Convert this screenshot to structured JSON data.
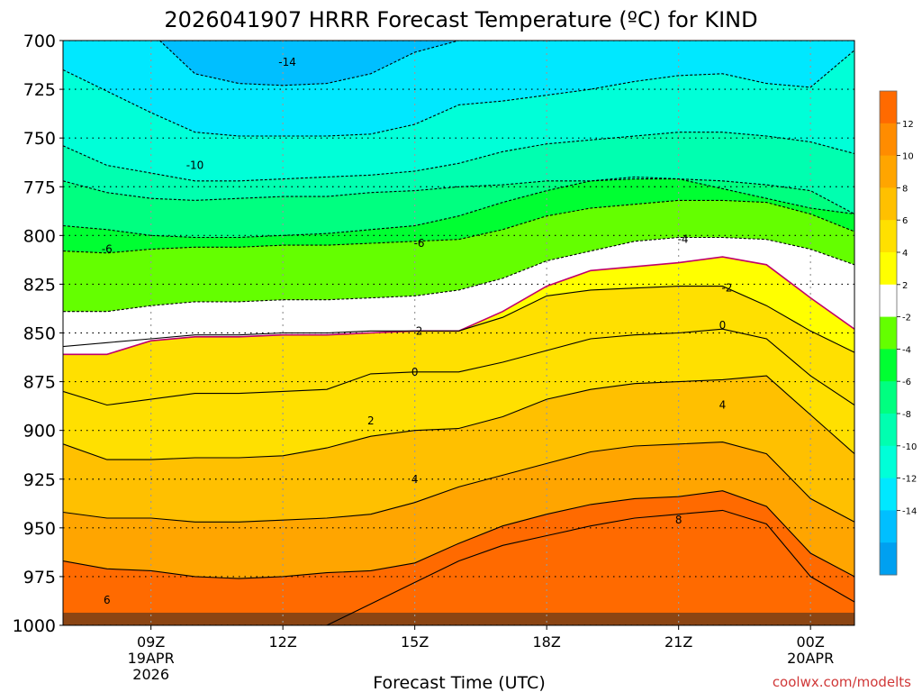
{
  "chart_data": {
    "type": "heatmap",
    "title": "2026041907 HRRR Forecast Temperature (ºC) for KIND",
    "xlabel": "Forecast Time (UTC)",
    "ylabel": "",
    "y_axis_unit": "hPa",
    "y_ticks": [
      "700",
      "725",
      "750",
      "775",
      "800",
      "825",
      "850",
      "875",
      "900",
      "925",
      "950",
      "975",
      "1000"
    ],
    "ylim": [
      1000,
      700
    ],
    "x_ticks": [
      {
        "time": 9,
        "lines": [
          "09Z",
          "19APR",
          "2026"
        ]
      },
      {
        "time": 12,
        "lines": [
          "12Z"
        ]
      },
      {
        "time": 15,
        "lines": [
          "15Z"
        ]
      },
      {
        "time": 18,
        "lines": [
          "18Z"
        ]
      },
      {
        "time": 21,
        "lines": [
          "21Z"
        ]
      },
      {
        "time": 24,
        "lines": [
          "00Z",
          "20APR"
        ]
      }
    ],
    "xlim": [
      7,
      25
    ],
    "grid": true,
    "colorbar": {
      "position": "right",
      "labels": [
        "12",
        "10",
        "8",
        "6",
        "4",
        "2",
        "-2",
        "-4",
        "-6",
        "-8",
        "-10",
        "-12",
        "-14"
      ],
      "colors": [
        "#ff6a00",
        "#ff8c00",
        "#ffa500",
        "#ffc000",
        "#ffe000",
        "#ffff00",
        "#ffffff",
        "#64ff00",
        "#00ff32",
        "#00ff80",
        "#00ffb0",
        "#00ffd8",
        "#00e8ff",
        "#00bfff",
        "#00a0f0"
      ]
    },
    "contour_levels": [
      12,
      10,
      8,
      6,
      4,
      2,
      0,
      -2,
      -4,
      -6,
      -8,
      -10,
      -12,
      -14
    ],
    "contour_labels": [
      {
        "text": "-14",
        "time": 12.1,
        "p": 711
      },
      {
        "text": "-10",
        "time": 10.0,
        "p": 764
      },
      {
        "text": "-6",
        "time": 8.0,
        "p": 807
      },
      {
        "text": "-6",
        "time": 15.1,
        "p": 804
      },
      {
        "text": "-4",
        "time": 21.1,
        "p": 802
      },
      {
        "text": "-2",
        "time": 22.1,
        "p": 827
      },
      {
        "text": "0",
        "time": 22.0,
        "p": 846
      },
      {
        "text": "0",
        "time": 15.0,
        "p": 870
      },
      {
        "text": "2",
        "time": 15.1,
        "p": 849
      },
      {
        "text": "2",
        "time": 14.0,
        "p": 895
      },
      {
        "text": "4",
        "time": 15.0,
        "p": 925
      },
      {
        "text": "4",
        "time": 22.0,
        "p": 887
      },
      {
        "text": "8",
        "time": 21.0,
        "p": 946
      },
      {
        "text": "6",
        "time": 8.0,
        "p": 987
      }
    ],
    "isotherms": [
      {
        "level": -14,
        "points": [
          [
            9.2,
            700
          ],
          [
            10,
            717
          ],
          [
            11,
            722
          ],
          [
            12,
            723
          ],
          [
            13,
            722
          ],
          [
            14,
            717
          ],
          [
            15,
            706
          ],
          [
            16,
            700
          ]
        ]
      },
      {
        "level": -12,
        "points": [
          [
            7,
            715
          ],
          [
            8,
            726
          ],
          [
            9,
            737
          ],
          [
            10,
            747
          ],
          [
            11,
            749
          ],
          [
            12,
            749
          ],
          [
            13,
            749
          ],
          [
            14,
            748
          ],
          [
            15,
            743
          ],
          [
            16,
            733
          ],
          [
            17,
            731
          ],
          [
            18,
            728
          ],
          [
            19,
            725
          ],
          [
            20,
            721
          ],
          [
            21,
            718
          ],
          [
            22,
            717
          ],
          [
            23,
            722
          ],
          [
            24,
            724
          ],
          [
            25,
            705
          ]
        ]
      },
      {
        "level": -10,
        "points": [
          [
            7,
            754
          ],
          [
            8,
            764
          ],
          [
            9,
            768
          ],
          [
            10,
            772
          ],
          [
            11,
            772
          ],
          [
            12,
            771
          ],
          [
            13,
            770
          ],
          [
            14,
            769
          ],
          [
            15,
            767
          ],
          [
            16,
            763
          ],
          [
            17,
            757
          ],
          [
            18,
            753
          ],
          [
            19,
            751
          ],
          [
            20,
            749
          ],
          [
            21,
            747
          ],
          [
            22,
            747
          ],
          [
            23,
            749
          ],
          [
            24,
            752
          ],
          [
            25,
            758
          ]
        ]
      },
      {
        "level": -8,
        "points": [
          [
            7,
            772
          ],
          [
            8,
            778
          ],
          [
            9,
            781
          ],
          [
            10,
            782
          ],
          [
            11,
            781
          ],
          [
            12,
            780
          ],
          [
            13,
            780
          ],
          [
            14,
            778
          ],
          [
            15,
            777
          ],
          [
            16,
            775
          ],
          [
            17,
            774
          ],
          [
            18,
            772
          ],
          [
            19,
            772
          ],
          [
            20,
            771
          ],
          [
            21,
            771
          ],
          [
            22,
            772
          ],
          [
            23,
            774
          ],
          [
            24,
            777
          ],
          [
            25,
            789
          ]
        ]
      },
      {
        "level": -6,
        "points": [
          [
            7,
            795
          ],
          [
            8,
            797
          ],
          [
            9,
            800
          ],
          [
            10,
            801
          ],
          [
            11,
            801
          ],
          [
            12,
            800
          ],
          [
            13,
            799
          ],
          [
            14,
            797
          ],
          [
            15,
            795
          ],
          [
            16,
            790
          ],
          [
            17,
            783
          ],
          [
            18,
            777
          ],
          [
            19,
            772
          ],
          [
            20,
            770
          ],
          [
            21,
            771
          ],
          [
            22,
            776
          ],
          [
            23,
            781
          ],
          [
            24,
            786
          ],
          [
            25,
            789
          ]
        ]
      },
      {
        "level": -4,
        "points": [
          [
            7,
            808
          ],
          [
            8,
            809
          ],
          [
            9,
            807
          ],
          [
            10,
            806
          ],
          [
            11,
            806
          ],
          [
            12,
            805
          ],
          [
            13,
            805
          ],
          [
            14,
            804
          ],
          [
            15,
            803
          ],
          [
            16,
            802
          ],
          [
            17,
            797
          ],
          [
            18,
            790
          ],
          [
            19,
            786
          ],
          [
            20,
            784
          ],
          [
            21,
            782
          ],
          [
            22,
            782
          ],
          [
            23,
            783
          ],
          [
            24,
            789
          ],
          [
            25,
            798
          ]
        ]
      },
      {
        "level": -2,
        "points": [
          [
            7,
            839
          ],
          [
            8,
            839
          ],
          [
            9,
            836
          ],
          [
            10,
            834
          ],
          [
            11,
            834
          ],
          [
            12,
            833
          ],
          [
            13,
            833
          ],
          [
            14,
            832
          ],
          [
            15,
            831
          ],
          [
            16,
            828
          ],
          [
            17,
            822
          ],
          [
            18,
            813
          ],
          [
            19,
            808
          ],
          [
            20,
            803
          ],
          [
            21,
            801
          ],
          [
            22,
            801
          ],
          [
            23,
            802
          ],
          [
            24,
            807
          ],
          [
            25,
            815
          ]
        ]
      },
      {
        "level": 0,
        "points": [
          [
            7,
            861
          ],
          [
            8,
            861
          ],
          [
            9,
            854
          ],
          [
            10,
            852
          ],
          [
            11,
            852
          ],
          [
            12,
            851
          ],
          [
            13,
            851
          ],
          [
            14,
            850
          ],
          [
            15,
            849
          ],
          [
            16,
            849
          ],
          [
            17,
            839
          ],
          [
            18,
            826
          ],
          [
            19,
            818
          ],
          [
            20,
            816
          ],
          [
            21,
            814
          ],
          [
            22,
            811
          ],
          [
            23,
            815
          ],
          [
            24,
            832
          ],
          [
            25,
            848
          ]
        ]
      },
      {
        "level": 2,
        "points": [
          [
            7,
            857
          ],
          [
            8,
            855
          ],
          [
            9,
            853
          ],
          [
            10,
            851
          ],
          [
            11,
            851
          ],
          [
            12,
            850
          ],
          [
            13,
            850
          ],
          [
            14,
            849
          ],
          [
            15,
            849
          ],
          [
            16,
            849
          ],
          [
            17,
            842
          ],
          [
            18,
            831
          ],
          [
            19,
            828
          ],
          [
            20,
            827
          ],
          [
            21,
            826
          ],
          [
            22,
            826
          ],
          [
            23,
            836
          ],
          [
            24,
            849
          ],
          [
            25,
            860
          ]
        ]
      },
      {
        "level": 4,
        "points": [
          [
            7,
            907
          ],
          [
            8,
            915
          ],
          [
            9,
            915
          ],
          [
            10,
            914
          ],
          [
            11,
            914
          ],
          [
            12,
            913
          ],
          [
            13,
            909
          ],
          [
            14,
            903
          ],
          [
            15,
            900
          ],
          [
            16,
            899
          ],
          [
            17,
            893
          ],
          [
            18,
            884
          ],
          [
            19,
            879
          ],
          [
            20,
            876
          ],
          [
            21,
            875
          ],
          [
            22,
            874
          ],
          [
            23,
            872
          ],
          [
            24,
            892
          ],
          [
            25,
            912
          ]
        ]
      },
      {
        "level": 6,
        "points": [
          [
            7,
            880
          ],
          [
            8,
            887
          ],
          [
            9,
            884
          ],
          [
            10,
            881
          ],
          [
            11,
            881
          ],
          [
            12,
            880
          ],
          [
            13,
            879
          ],
          [
            14,
            871
          ],
          [
            15,
            870
          ],
          [
            16,
            870
          ],
          [
            17,
            865
          ],
          [
            18,
            859
          ],
          [
            19,
            853
          ],
          [
            20,
            851
          ],
          [
            21,
            850
          ],
          [
            22,
            848
          ],
          [
            23,
            853
          ],
          [
            24,
            872
          ],
          [
            25,
            887
          ]
        ]
      },
      {
        "level": 8,
        "points": [
          [
            7,
            942
          ],
          [
            8,
            945
          ],
          [
            9,
            945
          ],
          [
            10,
            947
          ],
          [
            11,
            947
          ],
          [
            12,
            946
          ],
          [
            13,
            945
          ],
          [
            14,
            943
          ],
          [
            15,
            937
          ],
          [
            16,
            929
          ],
          [
            17,
            923
          ],
          [
            18,
            917
          ],
          [
            19,
            911
          ],
          [
            20,
            908
          ],
          [
            21,
            907
          ],
          [
            22,
            906
          ],
          [
            23,
            912
          ],
          [
            24,
            935
          ],
          [
            25,
            947
          ]
        ]
      },
      {
        "level": 10,
        "points": [
          [
            7,
            967
          ],
          [
            8,
            971
          ],
          [
            9,
            972
          ],
          [
            10,
            975
          ],
          [
            11,
            976
          ],
          [
            12,
            975
          ],
          [
            13,
            973
          ],
          [
            14,
            972
          ],
          [
            15,
            968
          ],
          [
            16,
            958
          ],
          [
            17,
            949
          ],
          [
            18,
            943
          ],
          [
            19,
            938
          ],
          [
            20,
            935
          ],
          [
            21,
            934
          ],
          [
            22,
            931
          ],
          [
            23,
            939
          ],
          [
            24,
            963
          ],
          [
            25,
            975
          ]
        ]
      },
      {
        "level": 12,
        "points": [
          [
            13,
            1000
          ],
          [
            14,
            989
          ],
          [
            15,
            978
          ],
          [
            16,
            967
          ],
          [
            17,
            959
          ],
          [
            18,
            954
          ],
          [
            19,
            949
          ],
          [
            20,
            945
          ],
          [
            21,
            943
          ],
          [
            22,
            941
          ],
          [
            23,
            948
          ],
          [
            24,
            975
          ],
          [
            25,
            988
          ]
        ]
      }
    ],
    "credit": "coolwx.com/modelts"
  }
}
